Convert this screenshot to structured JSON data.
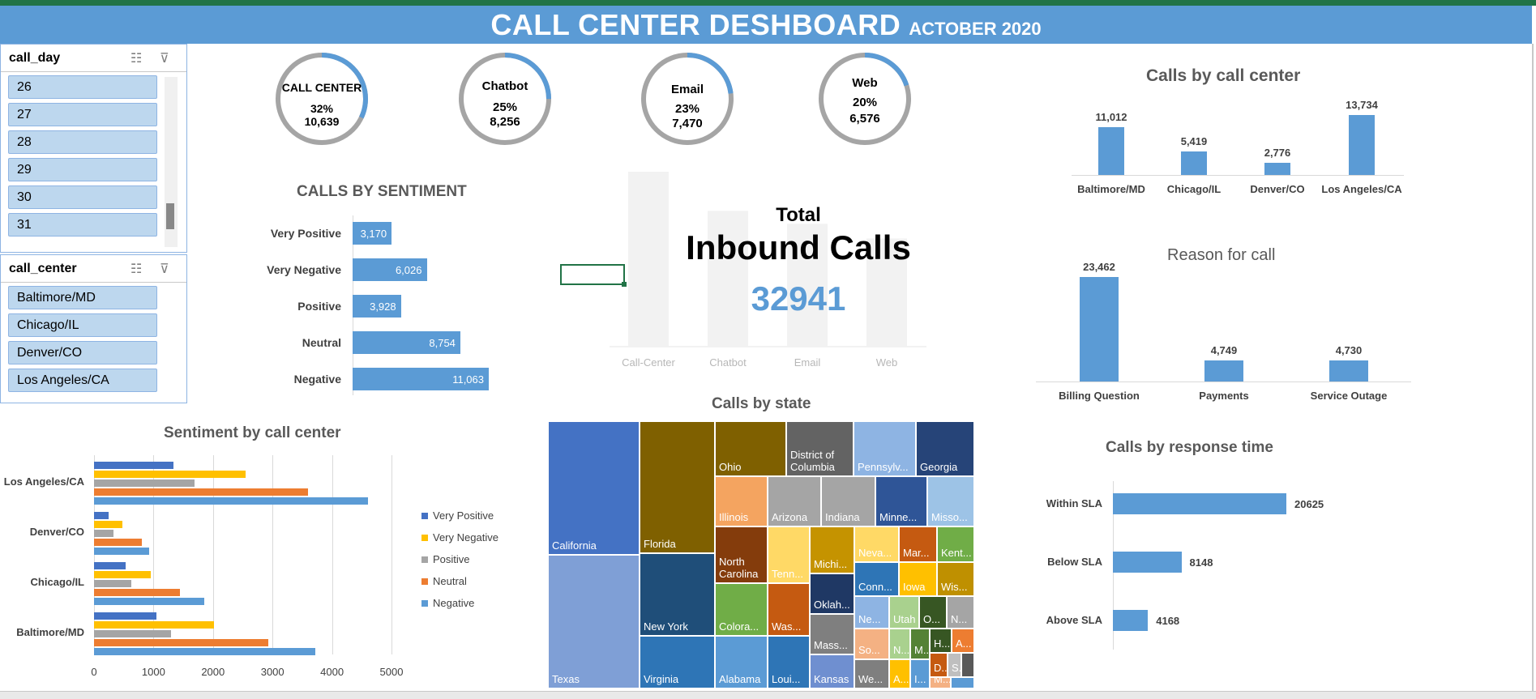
{
  "dashboard": {
    "title": "CALL CENTER DESHBOARD",
    "subtitle": "ACTOBER 2020",
    "colors": {
      "header_bg": "#5b9bd5",
      "accent": "#5b9bd5",
      "ring_gray": "#a5a5a5"
    }
  },
  "slicer_call_day": {
    "title": "call_day",
    "icons": [
      "multi-select-icon",
      "clear-filter-icon"
    ],
    "items": [
      "26",
      "27",
      "28",
      "29",
      "30",
      "31"
    ]
  },
  "slicer_call_center": {
    "title": "call_center",
    "icons": [
      "multi-select-icon",
      "clear-filter-icon"
    ],
    "items": [
      "Baltimore/MD",
      "Chicago/IL",
      "Denver/CO",
      "Los Angeles/CA"
    ]
  },
  "channels": [
    {
      "name": "CALL CENTER",
      "pct": "32%",
      "count": "10,639",
      "fraction": 0.32
    },
    {
      "name": "Chatbot",
      "pct": "25%",
      "count": "8,256",
      "fraction": 0.25
    },
    {
      "name": "Email",
      "pct": "23%",
      "count": "7,470",
      "fraction": 0.23
    },
    {
      "name": "Web",
      "pct": "20%",
      "count": "6,576",
      "fraction": 0.2
    }
  ],
  "total": {
    "label1": "Total",
    "label2": "Inbound Calls",
    "value": "32941",
    "bg_chart_categories": [
      "Call-Center",
      "Chatbot",
      "Email",
      "Web"
    ],
    "bg_chart_values": [
      10639,
      8256,
      7470,
      6576
    ]
  },
  "chart_data": [
    {
      "id": "calls_by_sentiment",
      "type": "bar",
      "orientation": "horizontal",
      "title": "CALLS BY SENTIMENT",
      "categories": [
        "Very Positive",
        "Very Negative",
        "Positive",
        "Neutral",
        "Negative"
      ],
      "values": [
        3170,
        6026,
        3928,
        8754,
        11063
      ],
      "data_labels": [
        "3,170",
        "6,026",
        "3,928",
        "8,754",
        "11,063"
      ],
      "max": 11063
    },
    {
      "id": "calls_by_call_center",
      "type": "bar",
      "title": "Calls by call center",
      "categories": [
        "Baltimore/MD",
        "Chicago/IL",
        "Denver/CO",
        "Los Angeles/CA"
      ],
      "values": [
        11012,
        5419,
        2776,
        13734
      ],
      "data_labels": [
        "11,012",
        "5,419",
        "2,776",
        "13,734"
      ],
      "max": 13734
    },
    {
      "id": "reason_for_call",
      "type": "bar",
      "title": "Reason for call",
      "categories": [
        "Billing Question",
        "Payments",
        "Service Outage"
      ],
      "values": [
        23462,
        4749,
        4730
      ],
      "data_labels": [
        "23,462",
        "4,749",
        "4,730"
      ],
      "max": 23462
    },
    {
      "id": "calls_by_response_time",
      "type": "bar",
      "orientation": "horizontal",
      "title": "Calls by response time",
      "categories": [
        "Within SLA",
        "Below SLA",
        "Above SLA"
      ],
      "values": [
        20625,
        8148,
        4168
      ],
      "data_labels": [
        "20625",
        "8148",
        "4168"
      ],
      "max": 20625
    },
    {
      "id": "sentiment_by_call_center",
      "type": "bar",
      "orientation": "horizontal",
      "title": "Sentiment by call center",
      "categories": [
        "Los Angeles/CA",
        "Denver/CO",
        "Chicago/IL",
        "Baltimore/MD"
      ],
      "series": [
        {
          "name": "Very Positive",
          "color": "#4472c4",
          "values": [
            1330,
            240,
            530,
            1050
          ]
        },
        {
          "name": "Very Negative",
          "color": "#ffc000",
          "values": [
            2550,
            480,
            960,
            2020
          ]
        },
        {
          "name": "Positive",
          "color": "#a5a5a5",
          "values": [
            1690,
            330,
            630,
            1290
          ]
        },
        {
          "name": "Neutral",
          "color": "#ed7d31",
          "values": [
            3600,
            800,
            1450,
            2930
          ]
        },
        {
          "name": "Negative",
          "color": "#5b9bd5",
          "values": [
            4600,
            920,
            1850,
            3720
          ]
        }
      ],
      "x_ticks": [
        "0",
        "1000",
        "2000",
        "3000",
        "4000",
        "5000"
      ],
      "xlim": [
        0,
        5000
      ],
      "legend": "right"
    },
    {
      "id": "calls_by_state",
      "type": "heatmap",
      "subtype": "treemap",
      "title": "Calls by state",
      "labels": [
        "California",
        "Texas",
        "Florida",
        "New York",
        "Virginia",
        "Ohio",
        "District of Columbia",
        "Pennsylv...",
        "Georgia",
        "Illinois",
        "Arizona",
        "Indiana",
        "Minne...",
        "Misso...",
        "North Carolina",
        "Tenn...",
        "Michi...",
        "Neva...",
        "Mar...",
        "Kent...",
        "Colora...",
        "Was...",
        "Oklah...",
        "Conn...",
        "Iowa",
        "Wis...",
        "Alabama",
        "Loui...",
        "Mass...",
        "Ne...",
        "Utah",
        "O...",
        "N...",
        "So...",
        "N...",
        "M...",
        "H...",
        "A...",
        "Kansas",
        "We...",
        "A...",
        "I...",
        "D...",
        "S...",
        "M..."
      ]
    }
  ]
}
